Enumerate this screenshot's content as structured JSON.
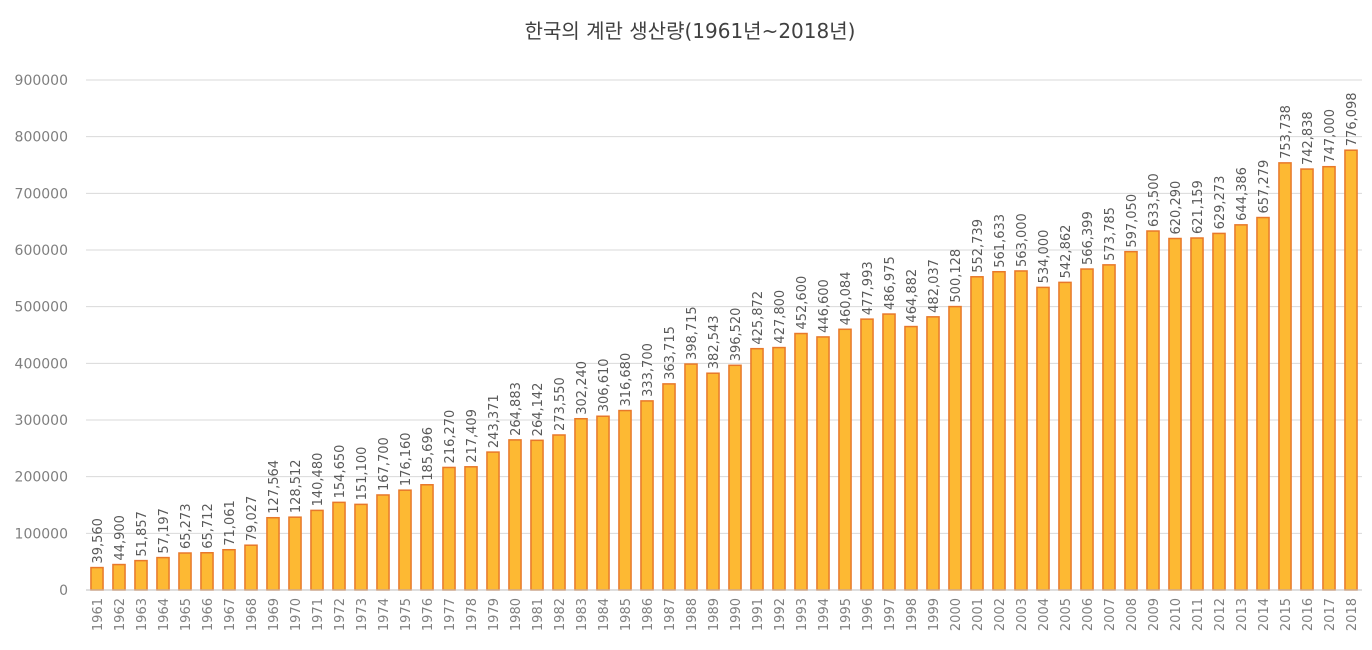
{
  "chart_data": {
    "type": "bar",
    "title": "한국의 계란 생산량(1961년~2018년)",
    "xlabel": "",
    "ylabel": "",
    "ylim": [
      0,
      900000
    ],
    "yticks": [
      "0",
      "100000",
      "200000",
      "300000",
      "400000",
      "500000",
      "600000",
      "700000",
      "800000",
      "900000"
    ],
    "grid": true,
    "legend": "none",
    "bar_color": "#FDB933",
    "bar_edge_color": "#E8782A",
    "categories": [
      "1961",
      "1962",
      "1963",
      "1964",
      "1965",
      "1966",
      "1967",
      "1968",
      "1969",
      "1970",
      "1971",
      "1972",
      "1973",
      "1974",
      "1975",
      "1976",
      "1977",
      "1978",
      "1979",
      "1980",
      "1981",
      "1982",
      "1983",
      "1984",
      "1985",
      "1986",
      "1987",
      "1988",
      "1989",
      "1990",
      "1991",
      "1992",
      "1993",
      "1994",
      "1995",
      "1996",
      "1997",
      "1998",
      "1999",
      "2000",
      "2001",
      "2002",
      "2003",
      "2004",
      "2005",
      "2006",
      "2007",
      "2008",
      "2009",
      "2010",
      "2011",
      "2012",
      "2013",
      "2014",
      "2015",
      "2016",
      "2017",
      "2018"
    ],
    "values": [
      39560,
      44900,
      51857,
      57197,
      65273,
      65712,
      71061,
      79027,
      127564,
      128512,
      140480,
      154650,
      151100,
      167700,
      176160,
      185696,
      216270,
      217409,
      243371,
      264883,
      264142,
      273550,
      302240,
      306610,
      316680,
      333700,
      363715,
      398715,
      382543,
      396520,
      425872,
      427800,
      452600,
      446600,
      460084,
      477993,
      486975,
      464882,
      482037,
      500128,
      552739,
      561633,
      563000,
      534000,
      542862,
      566399,
      573785,
      597050,
      633500,
      620290,
      621159,
      629273,
      644386,
      657279,
      753738,
      742838,
      747000,
      776098
    ],
    "data_labels": [
      "39,560",
      "44,900",
      "51,857",
      "57,197",
      "65,273",
      "65,712",
      "71,061",
      "79,027",
      "127,564",
      "128,512",
      "140,480",
      "154,650",
      "151,100",
      "167,700",
      "176,160",
      "185,696",
      "216,270",
      "217,409",
      "243,371",
      "264,883",
      "264,142",
      "273,550",
      "302,240",
      "306,610",
      "316,680",
      "333,700",
      "363,715",
      "398,715",
      "382,543",
      "396,520",
      "425,872",
      "427,800",
      "452,600",
      "446,600",
      "460,084",
      "477,993",
      "486,975",
      "464,882",
      "482,037",
      "500,128",
      "552,739",
      "561,633",
      "563,000",
      "534,000",
      "542,862",
      "566,399",
      "573,785",
      "597,050",
      "633,500",
      "620,290",
      "621,159",
      "629,273",
      "644,386",
      "657,279",
      "753,738",
      "742,838",
      "747,000",
      "776,098"
    ]
  }
}
